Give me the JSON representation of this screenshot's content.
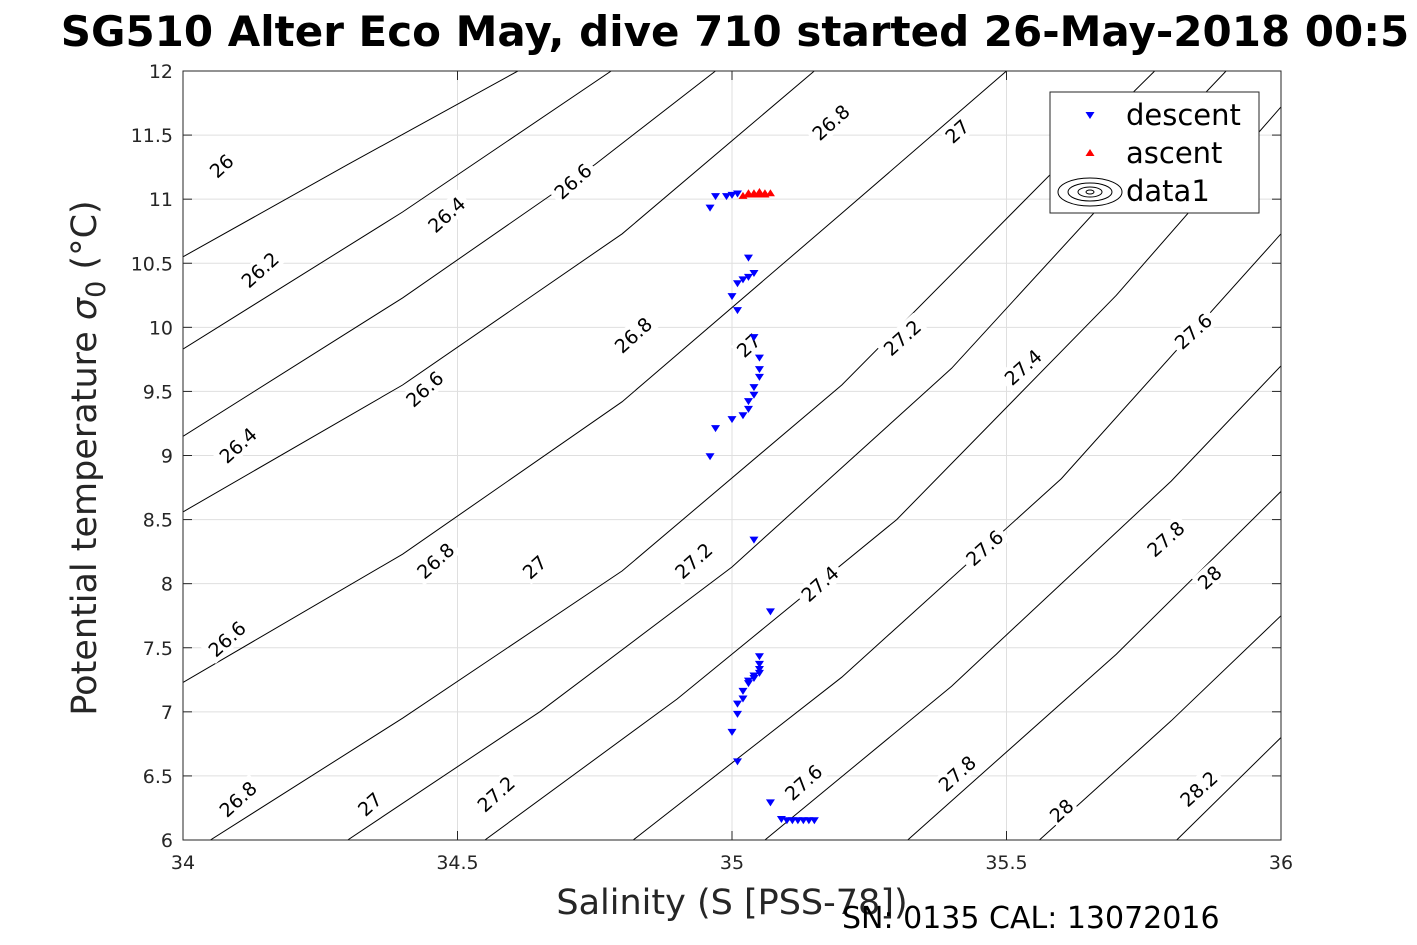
{
  "chart_data": {
    "type": "scatter",
    "title": "SG510 Alter Eco May, dive 710 started 26-May-2018 00:5",
    "xlabel": "Salinity (S [PSS-78])",
    "ylabel_prefix": "Potential temperature ",
    "ylabel_sigma": "σ",
    "ylabel_sub": "0",
    "ylabel_suffix": " (°C)",
    "footer": "SN: 0135  CAL: 13072016",
    "xlim": [
      34,
      36
    ],
    "ylim": [
      6,
      12
    ],
    "xticks": [
      "34",
      "34.5",
      "35",
      "35.5",
      "36"
    ],
    "yticks": [
      "6",
      "6.5",
      "7",
      "7.5",
      "8",
      "8.5",
      "9",
      "9.5",
      "10",
      "10.5",
      "11",
      "11.5",
      "12"
    ],
    "grid": true,
    "legend_position": "top-right",
    "legend": [
      "descent",
      "ascent",
      "data1"
    ],
    "colors": {
      "descent": "#0000ff",
      "ascent": "#ff0000",
      "contour": "#000000",
      "grid": "#dfdfdf"
    },
    "contour_labels": [
      {
        "text": "26",
        "x": 34.07,
        "y": 11.26
      },
      {
        "text": "26.2",
        "x": 34.14,
        "y": 10.45
      },
      {
        "text": "26.4",
        "x": 34.48,
        "y": 10.88
      },
      {
        "text": "26.4",
        "x": 34.1,
        "y": 9.08
      },
      {
        "text": "26.6",
        "x": 34.71,
        "y": 11.14
      },
      {
        "text": "26.6",
        "x": 34.44,
        "y": 9.52
      },
      {
        "text": "26.6",
        "x": 34.08,
        "y": 7.57
      },
      {
        "text": "26.8",
        "x": 35.18,
        "y": 11.6
      },
      {
        "text": "26.8",
        "x": 34.82,
        "y": 9.94
      },
      {
        "text": "26.8",
        "x": 34.46,
        "y": 8.18
      },
      {
        "text": "26.8",
        "x": 34.1,
        "y": 6.32
      },
      {
        "text": "27",
        "x": 35.41,
        "y": 11.53
      },
      {
        "text": "27",
        "x": 35.03,
        "y": 9.86
      },
      {
        "text": "27",
        "x": 34.64,
        "y": 8.13
      },
      {
        "text": "27",
        "x": 34.34,
        "y": 6.28
      },
      {
        "text": "27.2",
        "x": 35.31,
        "y": 9.92
      },
      {
        "text": "27.2",
        "x": 34.93,
        "y": 8.18
      },
      {
        "text": "27.2",
        "x": 34.57,
        "y": 6.36
      },
      {
        "text": "27.4",
        "x": 35.53,
        "y": 9.69
      },
      {
        "text": "27.4",
        "x": 35.16,
        "y": 8.0
      },
      {
        "text": "27.6",
        "x": 35.84,
        "y": 9.97
      },
      {
        "text": "27.6",
        "x": 35.46,
        "y": 8.28
      },
      {
        "text": "27.6",
        "x": 35.13,
        "y": 6.45
      },
      {
        "text": "27.8",
        "x": 35.79,
        "y": 8.35
      },
      {
        "text": "27.8",
        "x": 35.41,
        "y": 6.52
      },
      {
        "text": "28",
        "x": 35.87,
        "y": 8.05
      },
      {
        "text": "28",
        "x": 35.6,
        "y": 6.23
      },
      {
        "text": "28.2",
        "x": 35.85,
        "y": 6.4
      }
    ],
    "isopycnals": [
      {
        "points": [
          [
            34.0,
            10.55
          ],
          [
            34.3,
            11.27
          ],
          [
            34.61,
            12.0
          ]
        ]
      },
      {
        "points": [
          [
            34.0,
            9.83
          ],
          [
            34.4,
            10.9
          ],
          [
            34.78,
            12.0
          ]
        ]
      },
      {
        "points": [
          [
            34.0,
            9.15
          ],
          [
            34.4,
            10.23
          ],
          [
            34.75,
            11.27
          ],
          [
            34.97,
            12.0
          ]
        ]
      },
      {
        "points": [
          [
            34.0,
            8.56
          ],
          [
            34.4,
            9.55
          ],
          [
            34.8,
            10.73
          ],
          [
            35.15,
            12.0
          ]
        ]
      },
      {
        "points": [
          [
            34.0,
            7.23
          ],
          [
            34.4,
            8.23
          ],
          [
            34.8,
            9.42
          ],
          [
            35.2,
            10.89
          ],
          [
            35.5,
            12.0
          ]
        ]
      },
      {
        "points": [
          [
            34.05,
            6.0
          ],
          [
            34.4,
            6.95
          ],
          [
            34.8,
            8.1
          ],
          [
            35.2,
            9.55
          ],
          [
            35.6,
            11.28
          ],
          [
            35.77,
            12.0
          ]
        ]
      },
      {
        "points": [
          [
            34.3,
            6.0
          ],
          [
            34.65,
            7.0
          ],
          [
            35.0,
            8.13
          ],
          [
            35.4,
            9.68
          ],
          [
            35.8,
            11.55
          ],
          [
            35.9,
            12.0
          ]
        ]
      },
      {
        "points": [
          [
            34.55,
            6.0
          ],
          [
            34.9,
            7.1
          ],
          [
            35.3,
            8.5
          ],
          [
            35.7,
            10.25
          ],
          [
            36.0,
            11.72
          ]
        ]
      },
      {
        "points": [
          [
            34.82,
            6.0
          ],
          [
            35.2,
            7.27
          ],
          [
            35.6,
            8.82
          ],
          [
            36.0,
            10.73
          ]
        ]
      },
      {
        "points": [
          [
            35.06,
            6.0
          ],
          [
            35.4,
            7.2
          ],
          [
            35.8,
            8.8
          ],
          [
            36.0,
            9.7
          ]
        ]
      },
      {
        "points": [
          [
            35.32,
            6.0
          ],
          [
            35.7,
            7.45
          ],
          [
            36.0,
            8.72
          ]
        ]
      },
      {
        "points": [
          [
            35.56,
            6.0
          ],
          [
            35.8,
            6.93
          ],
          [
            36.0,
            7.75
          ]
        ]
      },
      {
        "points": [
          [
            35.81,
            6.0
          ],
          [
            36.0,
            6.8
          ]
        ]
      }
    ],
    "series": [
      {
        "name": "descent",
        "marker": "triangle-down",
        "points": [
          [
            34.97,
            11.02
          ],
          [
            34.99,
            11.02
          ],
          [
            35.0,
            11.03
          ],
          [
            35.01,
            11.04
          ],
          [
            34.96,
            10.93
          ],
          [
            35.03,
            10.54
          ],
          [
            35.04,
            10.42
          ],
          [
            35.03,
            10.39
          ],
          [
            35.02,
            10.37
          ],
          [
            35.01,
            10.34
          ],
          [
            35.0,
            10.24
          ],
          [
            35.01,
            10.13
          ],
          [
            35.04,
            9.92
          ],
          [
            35.05,
            9.76
          ],
          [
            35.05,
            9.67
          ],
          [
            35.05,
            9.61
          ],
          [
            35.04,
            9.53
          ],
          [
            35.04,
            9.47
          ],
          [
            35.03,
            9.42
          ],
          [
            35.03,
            9.36
          ],
          [
            35.02,
            9.31
          ],
          [
            35.0,
            9.28
          ],
          [
            34.97,
            9.21
          ],
          [
            34.96,
            8.99
          ],
          [
            35.04,
            8.34
          ],
          [
            35.07,
            7.78
          ],
          [
            35.05,
            7.43
          ],
          [
            35.05,
            7.37
          ],
          [
            35.05,
            7.33
          ],
          [
            35.05,
            7.3
          ],
          [
            35.04,
            7.28
          ],
          [
            35.04,
            7.26
          ],
          [
            35.03,
            7.24
          ],
          [
            35.03,
            7.22
          ],
          [
            35.02,
            7.16
          ],
          [
            35.02,
            7.1
          ],
          [
            35.01,
            7.06
          ],
          [
            35.01,
            6.98
          ],
          [
            35.0,
            6.84
          ],
          [
            35.01,
            6.61
          ],
          [
            35.07,
            6.29
          ],
          [
            35.09,
            6.16
          ],
          [
            35.1,
            6.15
          ],
          [
            35.11,
            6.15
          ],
          [
            35.12,
            6.15
          ],
          [
            35.13,
            6.15
          ],
          [
            35.14,
            6.15
          ],
          [
            35.15,
            6.15
          ]
        ]
      },
      {
        "name": "ascent",
        "marker": "triangle-up",
        "points": [
          [
            35.02,
            11.03
          ],
          [
            35.03,
            11.04
          ],
          [
            35.03,
            11.05
          ],
          [
            35.04,
            11.04
          ],
          [
            35.04,
            11.05
          ],
          [
            35.05,
            11.04
          ],
          [
            35.05,
            11.06
          ],
          [
            35.06,
            11.05
          ],
          [
            35.06,
            11.04
          ],
          [
            35.07,
            11.05
          ]
        ]
      }
    ]
  }
}
